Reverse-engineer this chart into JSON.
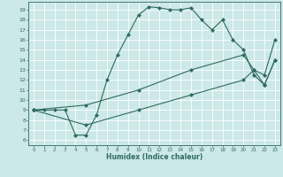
{
  "xlabel": "Humidex (Indice chaleur)",
  "bg_color": "#cce8e8",
  "grid_color": "#ffffff",
  "line_color": "#2e6b5e",
  "xlim": [
    -0.5,
    23.5
  ],
  "ylim": [
    5.5,
    19.8
  ],
  "xticks": [
    0,
    1,
    2,
    3,
    4,
    5,
    6,
    7,
    8,
    9,
    10,
    11,
    12,
    13,
    14,
    15,
    16,
    17,
    18,
    19,
    20,
    21,
    22,
    23
  ],
  "yticks": [
    6,
    7,
    8,
    9,
    10,
    11,
    12,
    13,
    14,
    15,
    16,
    17,
    18,
    19
  ],
  "curve1_x": [
    0,
    1,
    2,
    3,
    4,
    5,
    6,
    7,
    8,
    9,
    10,
    11,
    12,
    13,
    14,
    15,
    16,
    17,
    18,
    19,
    20,
    21,
    22,
    23
  ],
  "curve1_y": [
    9,
    9,
    9,
    9,
    6.5,
    6.5,
    8.5,
    12,
    14.5,
    16.5,
    18.5,
    19.3,
    19.2,
    19.0,
    19.0,
    19.2,
    18.0,
    17.0,
    18.0,
    16.0,
    15.0,
    12.5,
    11.5,
    14.0
  ],
  "curve2_x": [
    0,
    5,
    10,
    15,
    20,
    21,
    22,
    23
  ],
  "curve2_y": [
    9.0,
    9.5,
    11.0,
    13.0,
    14.5,
    13.0,
    12.5,
    16.0
  ],
  "curve3_x": [
    0,
    5,
    10,
    15,
    20,
    21,
    22,
    23
  ],
  "curve3_y": [
    9.0,
    7.5,
    9.0,
    10.5,
    12.0,
    13.0,
    11.5,
    14.0
  ]
}
